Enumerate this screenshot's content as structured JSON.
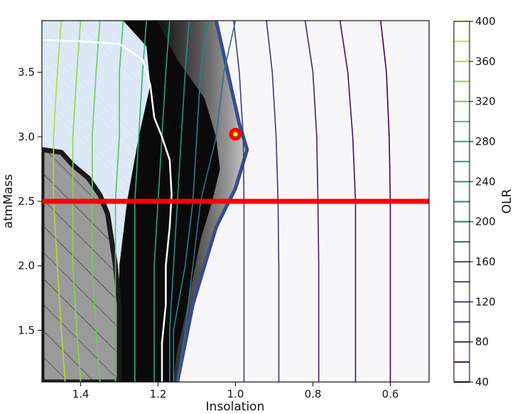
{
  "chart_data": {
    "type": "contour",
    "title": "",
    "xlabel": "Insolation",
    "ylabel": "atmMass",
    "xlim": [
      1.5,
      0.5
    ],
    "ylim": [
      1.1,
      3.9
    ],
    "x_reversed": true,
    "x_ticks": [
      1.4,
      1.2,
      1.0,
      0.8,
      0.6
    ],
    "x_tick_labels": [
      "1.4",
      "1.2",
      "1.0",
      "0.8",
      "0.6"
    ],
    "y_ticks": [
      1.5,
      2.0,
      2.5,
      3.0,
      3.5
    ],
    "y_tick_labels": [
      "1.5",
      "2.0",
      "2.5",
      "3.0",
      "3.5"
    ],
    "grid": false,
    "colorbar": {
      "label": "OLR",
      "min": 40,
      "max": 400,
      "ticks": [
        40,
        80,
        120,
        160,
        200,
        240,
        280,
        320,
        360,
        400
      ],
      "tick_labels": [
        "40",
        "80",
        "120",
        "160",
        "200",
        "240",
        "280",
        "320",
        "360",
        "400"
      ],
      "levels": [
        40,
        60,
        80,
        100,
        120,
        140,
        160,
        180,
        200,
        220,
        240,
        260,
        280,
        300,
        320,
        340,
        360,
        380,
        400
      ]
    },
    "highlight_line": {
      "type": "horizontal",
      "y": 2.5,
      "color": "#ff0000"
    },
    "marker": {
      "x": 1.0,
      "y": 3.02,
      "outer_color": "#ff0000",
      "inner_color": "#ffff00"
    },
    "olr_contours": [
      {
        "level": 40,
        "points": [
          [
            0.625,
            3.9
          ],
          [
            0.61,
            3.5
          ],
          [
            0.603,
            3.0
          ],
          [
            0.6,
            2.5
          ],
          [
            0.6,
            2.0
          ],
          [
            0.6,
            1.5
          ],
          [
            0.6,
            1.1
          ]
        ]
      },
      {
        "level": 60,
        "points": [
          [
            0.73,
            3.9
          ],
          [
            0.71,
            3.5
          ],
          [
            0.697,
            3.0
          ],
          [
            0.69,
            2.5
          ],
          [
            0.69,
            2.0
          ],
          [
            0.69,
            1.5
          ],
          [
            0.69,
            1.1
          ]
        ]
      },
      {
        "level": 80,
        "points": [
          [
            0.82,
            3.9
          ],
          [
            0.8,
            3.5
          ],
          [
            0.79,
            3.0
          ],
          [
            0.787,
            2.5
          ],
          [
            0.785,
            2.0
          ],
          [
            0.785,
            1.5
          ],
          [
            0.785,
            1.1
          ]
        ]
      },
      {
        "level": 100,
        "points": [
          [
            0.92,
            3.9
          ],
          [
            0.905,
            3.5
          ],
          [
            0.895,
            3.0
          ],
          [
            0.89,
            2.5
          ],
          [
            0.888,
            2.0
          ],
          [
            0.888,
            1.5
          ],
          [
            0.888,
            1.1
          ]
        ]
      },
      {
        "level": 110,
        "points": [
          [
            1.005,
            3.9
          ],
          [
            0.99,
            3.5
          ],
          [
            0.98,
            3.0
          ],
          [
            0.978,
            2.5
          ],
          [
            0.978,
            2.0
          ],
          [
            0.978,
            1.5
          ],
          [
            0.978,
            1.1
          ]
        ]
      },
      {
        "level": 200,
        "points": [
          [
            1.0,
            3.9
          ],
          [
            1.03,
            3.5
          ],
          [
            1.05,
            3.0
          ],
          [
            1.09,
            2.5
          ],
          [
            1.11,
            2.0
          ],
          [
            1.13,
            1.5
          ],
          [
            1.15,
            1.1
          ]
        ]
      },
      {
        "level": 220,
        "points": [
          [
            1.07,
            3.9
          ],
          [
            1.09,
            3.5
          ],
          [
            1.1,
            3.0
          ],
          [
            1.11,
            2.5
          ],
          [
            1.13,
            2.0
          ],
          [
            1.16,
            1.5
          ],
          [
            1.16,
            1.1
          ]
        ]
      },
      {
        "level": 240,
        "points": [
          [
            1.12,
            3.9
          ],
          [
            1.13,
            3.5
          ],
          [
            1.14,
            3.0
          ],
          [
            1.15,
            2.5
          ],
          [
            1.16,
            2.0
          ],
          [
            1.17,
            1.5
          ],
          [
            1.17,
            1.1
          ]
        ]
      },
      {
        "level": 260,
        "points": [
          [
            1.17,
            3.9
          ],
          [
            1.18,
            3.5
          ],
          [
            1.19,
            3.0
          ],
          [
            1.2,
            2.5
          ],
          [
            1.21,
            2.0
          ],
          [
            1.21,
            1.5
          ],
          [
            1.21,
            1.1
          ]
        ]
      },
      {
        "level": 280,
        "points": [
          [
            1.23,
            3.9
          ],
          [
            1.24,
            3.5
          ],
          [
            1.25,
            3.0
          ],
          [
            1.26,
            2.5
          ],
          [
            1.26,
            2.0
          ],
          [
            1.26,
            1.5
          ],
          [
            1.26,
            1.1
          ]
        ]
      },
      {
        "level": 300,
        "points": [
          [
            1.29,
            3.9
          ],
          [
            1.3,
            3.5
          ],
          [
            1.3,
            3.0
          ],
          [
            1.31,
            2.5
          ],
          [
            1.31,
            2.0
          ],
          [
            1.31,
            1.5
          ],
          [
            1.31,
            1.1
          ]
        ]
      },
      {
        "level": 320,
        "points": [
          [
            1.35,
            3.9
          ],
          [
            1.36,
            3.5
          ],
          [
            1.37,
            3.0
          ],
          [
            1.37,
            2.5
          ],
          [
            1.37,
            2.0
          ],
          [
            1.36,
            1.5
          ],
          [
            1.35,
            1.1
          ]
        ]
      },
      {
        "level": 340,
        "points": [
          [
            1.4,
            3.9
          ],
          [
            1.41,
            3.5
          ],
          [
            1.42,
            3.0
          ],
          [
            1.42,
            2.5
          ],
          [
            1.42,
            2.0
          ],
          [
            1.41,
            1.5
          ],
          [
            1.4,
            1.1
          ]
        ]
      },
      {
        "level": 360,
        "points": [
          [
            1.45,
            3.9
          ],
          [
            1.46,
            3.5
          ],
          [
            1.47,
            3.0
          ],
          [
            1.47,
            2.5
          ],
          [
            1.46,
            2.0
          ],
          [
            1.45,
            1.5
          ],
          [
            1.44,
            1.1
          ]
        ]
      }
    ],
    "white_boundary": [
      [
        1.5,
        3.75
      ],
      [
        1.4,
        3.74
      ],
      [
        1.3,
        3.72
      ],
      [
        1.24,
        3.6
      ],
      [
        1.22,
        3.4
      ],
      [
        1.21,
        3.15
      ],
      [
        1.19,
        3.0
      ],
      [
        1.17,
        2.82
      ],
      [
        1.165,
        2.55
      ],
      [
        1.17,
        2.3
      ],
      [
        1.18,
        2.0
      ],
      [
        1.18,
        1.7
      ],
      [
        1.19,
        1.4
      ],
      [
        1.19,
        1.1
      ]
    ],
    "hatched_region": [
      [
        1.5,
        2.9
      ],
      [
        1.45,
        2.88
      ],
      [
        1.42,
        2.78
      ],
      [
        1.38,
        2.68
      ],
      [
        1.35,
        2.55
      ],
      [
        1.33,
        2.4
      ],
      [
        1.32,
        2.2
      ],
      [
        1.31,
        2.0
      ],
      [
        1.3,
        1.7
      ],
      [
        1.3,
        1.1
      ],
      [
        1.5,
        1.1
      ]
    ],
    "black_region": [
      [
        1.29,
        3.9
      ],
      [
        1.2,
        3.9
      ],
      [
        1.15,
        3.6
      ],
      [
        1.08,
        3.3
      ],
      [
        1.05,
        3.0
      ],
      [
        1.04,
        2.75
      ],
      [
        1.06,
        2.5
      ],
      [
        1.09,
        2.2
      ],
      [
        1.11,
        1.9
      ],
      [
        1.13,
        1.6
      ],
      [
        1.15,
        1.35
      ],
      [
        1.16,
        1.1
      ],
      [
        1.3,
        1.1
      ],
      [
        1.3,
        1.5
      ],
      [
        1.3,
        2.0
      ],
      [
        1.28,
        2.5
      ],
      [
        1.25,
        3.0
      ],
      [
        1.22,
        3.4
      ],
      [
        1.23,
        3.7
      ]
    ],
    "fan_region": [
      [
        1.2,
        3.9
      ],
      [
        1.05,
        3.9
      ],
      [
        1.02,
        3.5
      ],
      [
        0.99,
        3.1
      ],
      [
        0.97,
        2.9
      ],
      [
        1.0,
        2.6
      ],
      [
        1.05,
        2.3
      ],
      [
        1.08,
        2.0
      ],
      [
        1.11,
        1.7
      ],
      [
        1.13,
        1.4
      ],
      [
        1.15,
        1.1
      ],
      [
        1.16,
        1.1
      ],
      [
        1.15,
        1.35
      ],
      [
        1.13,
        1.6
      ],
      [
        1.11,
        1.9
      ],
      [
        1.09,
        2.2
      ],
      [
        1.06,
        2.5
      ],
      [
        1.04,
        2.75
      ],
      [
        1.05,
        3.0
      ],
      [
        1.08,
        3.3
      ],
      [
        1.15,
        3.6
      ]
    ],
    "light_blue_region": [
      [
        1.5,
        3.9
      ],
      [
        1.2,
        3.9
      ],
      [
        1.23,
        3.7
      ],
      [
        1.22,
        3.4
      ],
      [
        1.25,
        3.0
      ],
      [
        1.28,
        2.5
      ],
      [
        1.3,
        2.0
      ],
      [
        1.31,
        2.0
      ],
      [
        1.32,
        2.2
      ],
      [
        1.33,
        2.4
      ],
      [
        1.35,
        2.55
      ],
      [
        1.38,
        2.68
      ],
      [
        1.42,
        2.78
      ],
      [
        1.45,
        2.88
      ],
      [
        1.5,
        2.9
      ]
    ]
  }
}
